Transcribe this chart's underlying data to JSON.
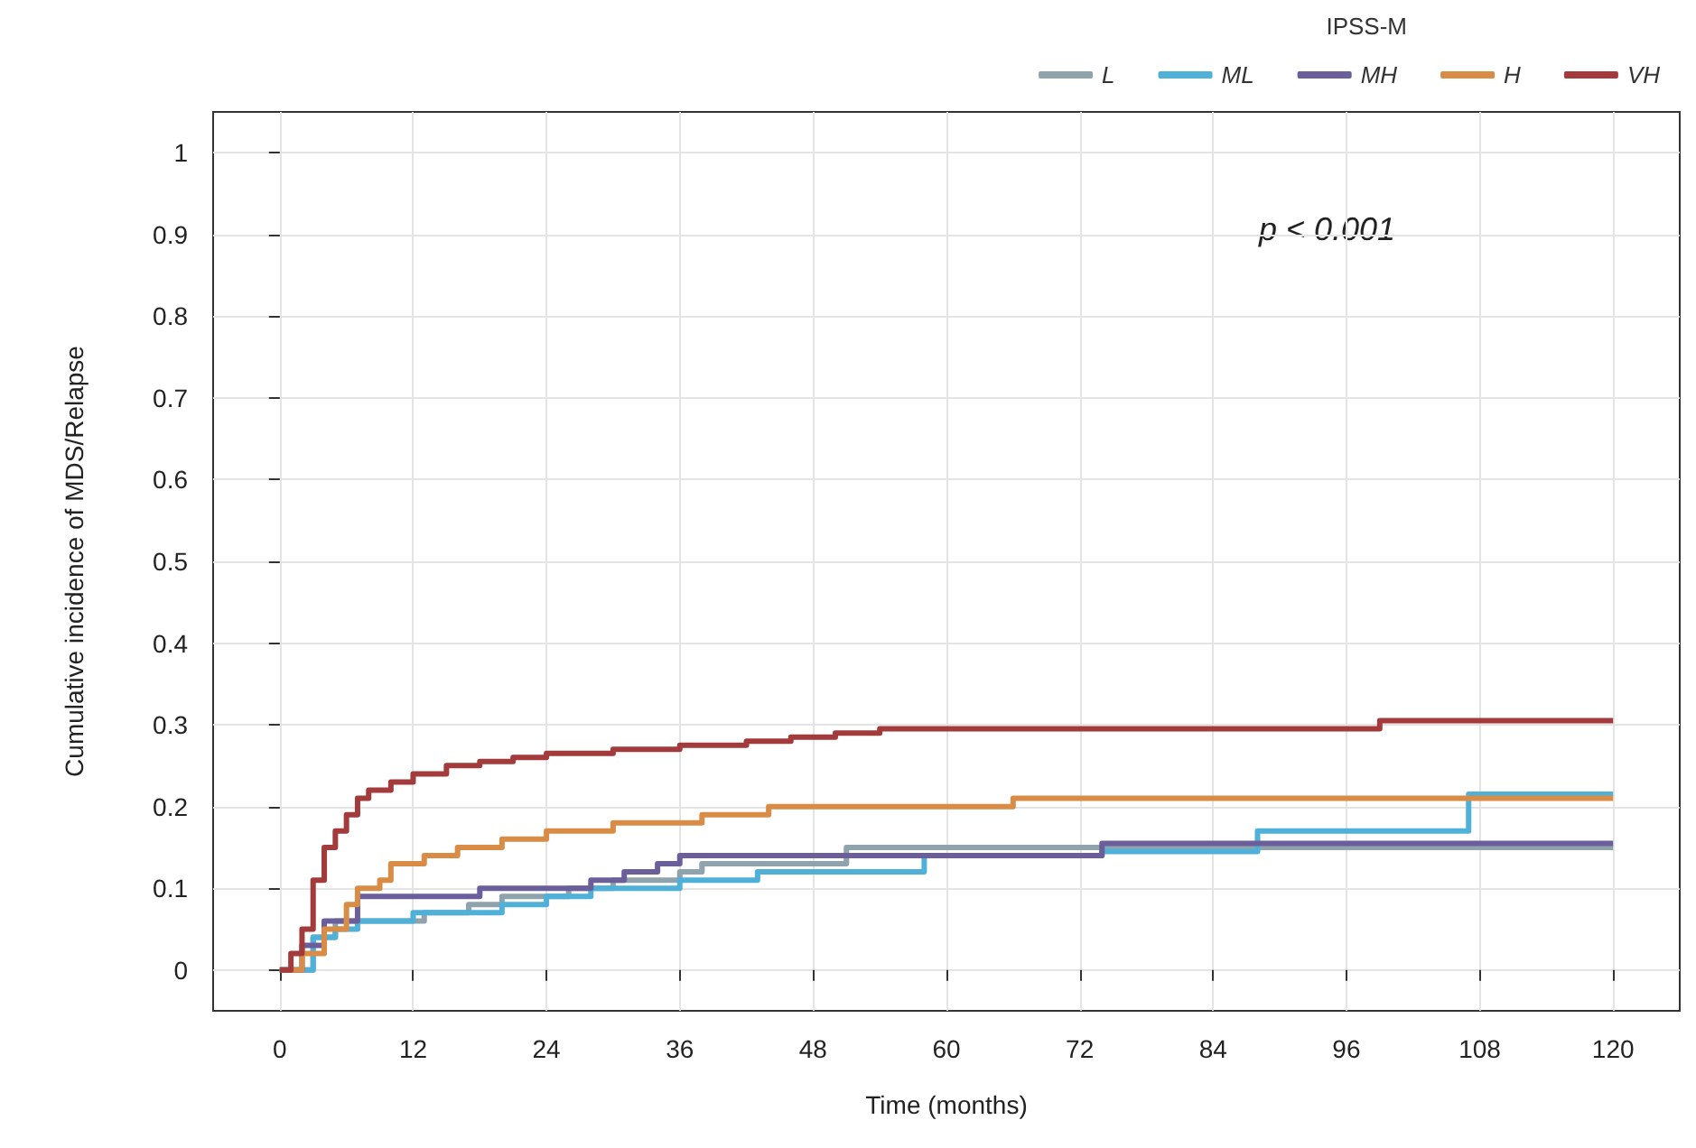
{
  "chart_data": {
    "type": "step",
    "xlabel": "Time (months)",
    "ylabel": "Cumulative incidence of MDS/Relapse",
    "legend_title": "IPSS-M",
    "legend": "top right",
    "grid": true,
    "xlim": [
      -6,
      126
    ],
    "xticks": [
      0,
      12,
      24,
      36,
      48,
      60,
      72,
      84,
      96,
      108,
      120
    ],
    "ylim": [
      -0.05,
      1.05
    ],
    "yticks": [
      0,
      0.1,
      0.2,
      0.3,
      0.4,
      0.5,
      0.6,
      0.7,
      0.8,
      0.9,
      1
    ],
    "annotations": [
      "p < 0.001"
    ],
    "series": [
      {
        "name": "L",
        "color": "#8fa3ad",
        "x": [
          0,
          3,
          5,
          13,
          17,
          20,
          26,
          30,
          36,
          38,
          51,
          120
        ],
        "values": [
          0,
          0.04,
          0.06,
          0.07,
          0.08,
          0.09,
          0.1,
          0.11,
          0.12,
          0.13,
          0.15,
          0.15
        ]
      },
      {
        "name": "ML",
        "color": "#4fb0d8",
        "x": [
          0,
          3,
          5,
          7,
          12,
          20,
          24,
          28,
          36,
          43,
          58,
          74,
          88,
          107,
          120
        ],
        "values": [
          0,
          0.04,
          0.05,
          0.06,
          0.07,
          0.08,
          0.09,
          0.1,
          0.11,
          0.12,
          0.14,
          0.145,
          0.17,
          0.215,
          0.215
        ]
      },
      {
        "name": "MH",
        "color": "#6a5f9a",
        "x": [
          0,
          2,
          4,
          7,
          18,
          28,
          31,
          34,
          36,
          74,
          120
        ],
        "values": [
          0,
          0.03,
          0.06,
          0.09,
          0.1,
          0.11,
          0.12,
          0.13,
          0.14,
          0.155,
          0.155
        ]
      },
      {
        "name": "H",
        "color": "#d98c45",
        "x": [
          0,
          2,
          4,
          6,
          7,
          9,
          10,
          13,
          16,
          20,
          24,
          30,
          38,
          44,
          66,
          120
        ],
        "values": [
          0,
          0.02,
          0.05,
          0.08,
          0.1,
          0.11,
          0.13,
          0.14,
          0.15,
          0.16,
          0.17,
          0.18,
          0.19,
          0.2,
          0.21,
          0.21
        ]
      },
      {
        "name": "VH",
        "color": "#a33b3c",
        "x": [
          0,
          1,
          2,
          3,
          4,
          5,
          6,
          7,
          8,
          10,
          12,
          15,
          18,
          21,
          24,
          30,
          36,
          42,
          46,
          50,
          54,
          99,
          120
        ],
        "values": [
          0,
          0.02,
          0.05,
          0.11,
          0.15,
          0.17,
          0.19,
          0.21,
          0.22,
          0.23,
          0.24,
          0.25,
          0.255,
          0.26,
          0.265,
          0.27,
          0.275,
          0.28,
          0.285,
          0.29,
          0.295,
          0.305,
          0.305
        ]
      }
    ]
  }
}
